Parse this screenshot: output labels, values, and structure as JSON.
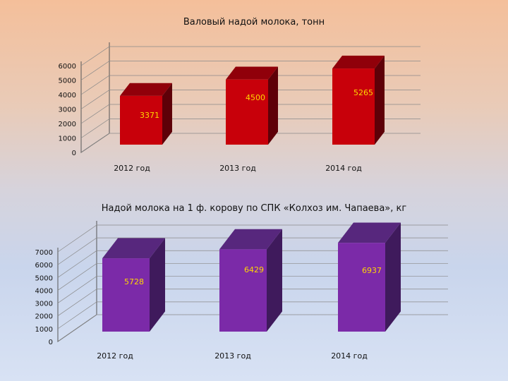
{
  "chart_data": [
    {
      "type": "bar",
      "title": "Валовый надой молока, тонн",
      "categories": [
        "2012 год",
        "2013 год",
        "2014 год"
      ],
      "values": [
        3371,
        4500,
        5265
      ],
      "value_labels": [
        "3371",
        "4500",
        "5265"
      ],
      "y_ticks": [
        "0",
        "1000",
        "2000",
        "3000",
        "4000",
        "5000",
        "6000"
      ],
      "ylim": [
        0,
        6000
      ],
      "colors": {
        "front": "#c8000a",
        "side": "#5e0008",
        "top": "#90000a"
      }
    },
    {
      "type": "bar",
      "title": "Надой молока на 1 ф. корову по СПК «Колхоз им. Чапаева», кг",
      "categories": [
        "2012 год",
        "2013 год",
        "2014 год"
      ],
      "values": [
        5728,
        6429,
        6937
      ],
      "value_labels": [
        "5728",
        "6429",
        "6937"
      ],
      "y_ticks": [
        "0",
        "1000",
        "2000",
        "3000",
        "4000",
        "5000",
        "6000",
        "7000"
      ],
      "ylim": [
        0,
        7000
      ],
      "colors": {
        "front": "#7b2aa8",
        "side": "#3f1a5c",
        "top": "#57277d"
      }
    }
  ]
}
